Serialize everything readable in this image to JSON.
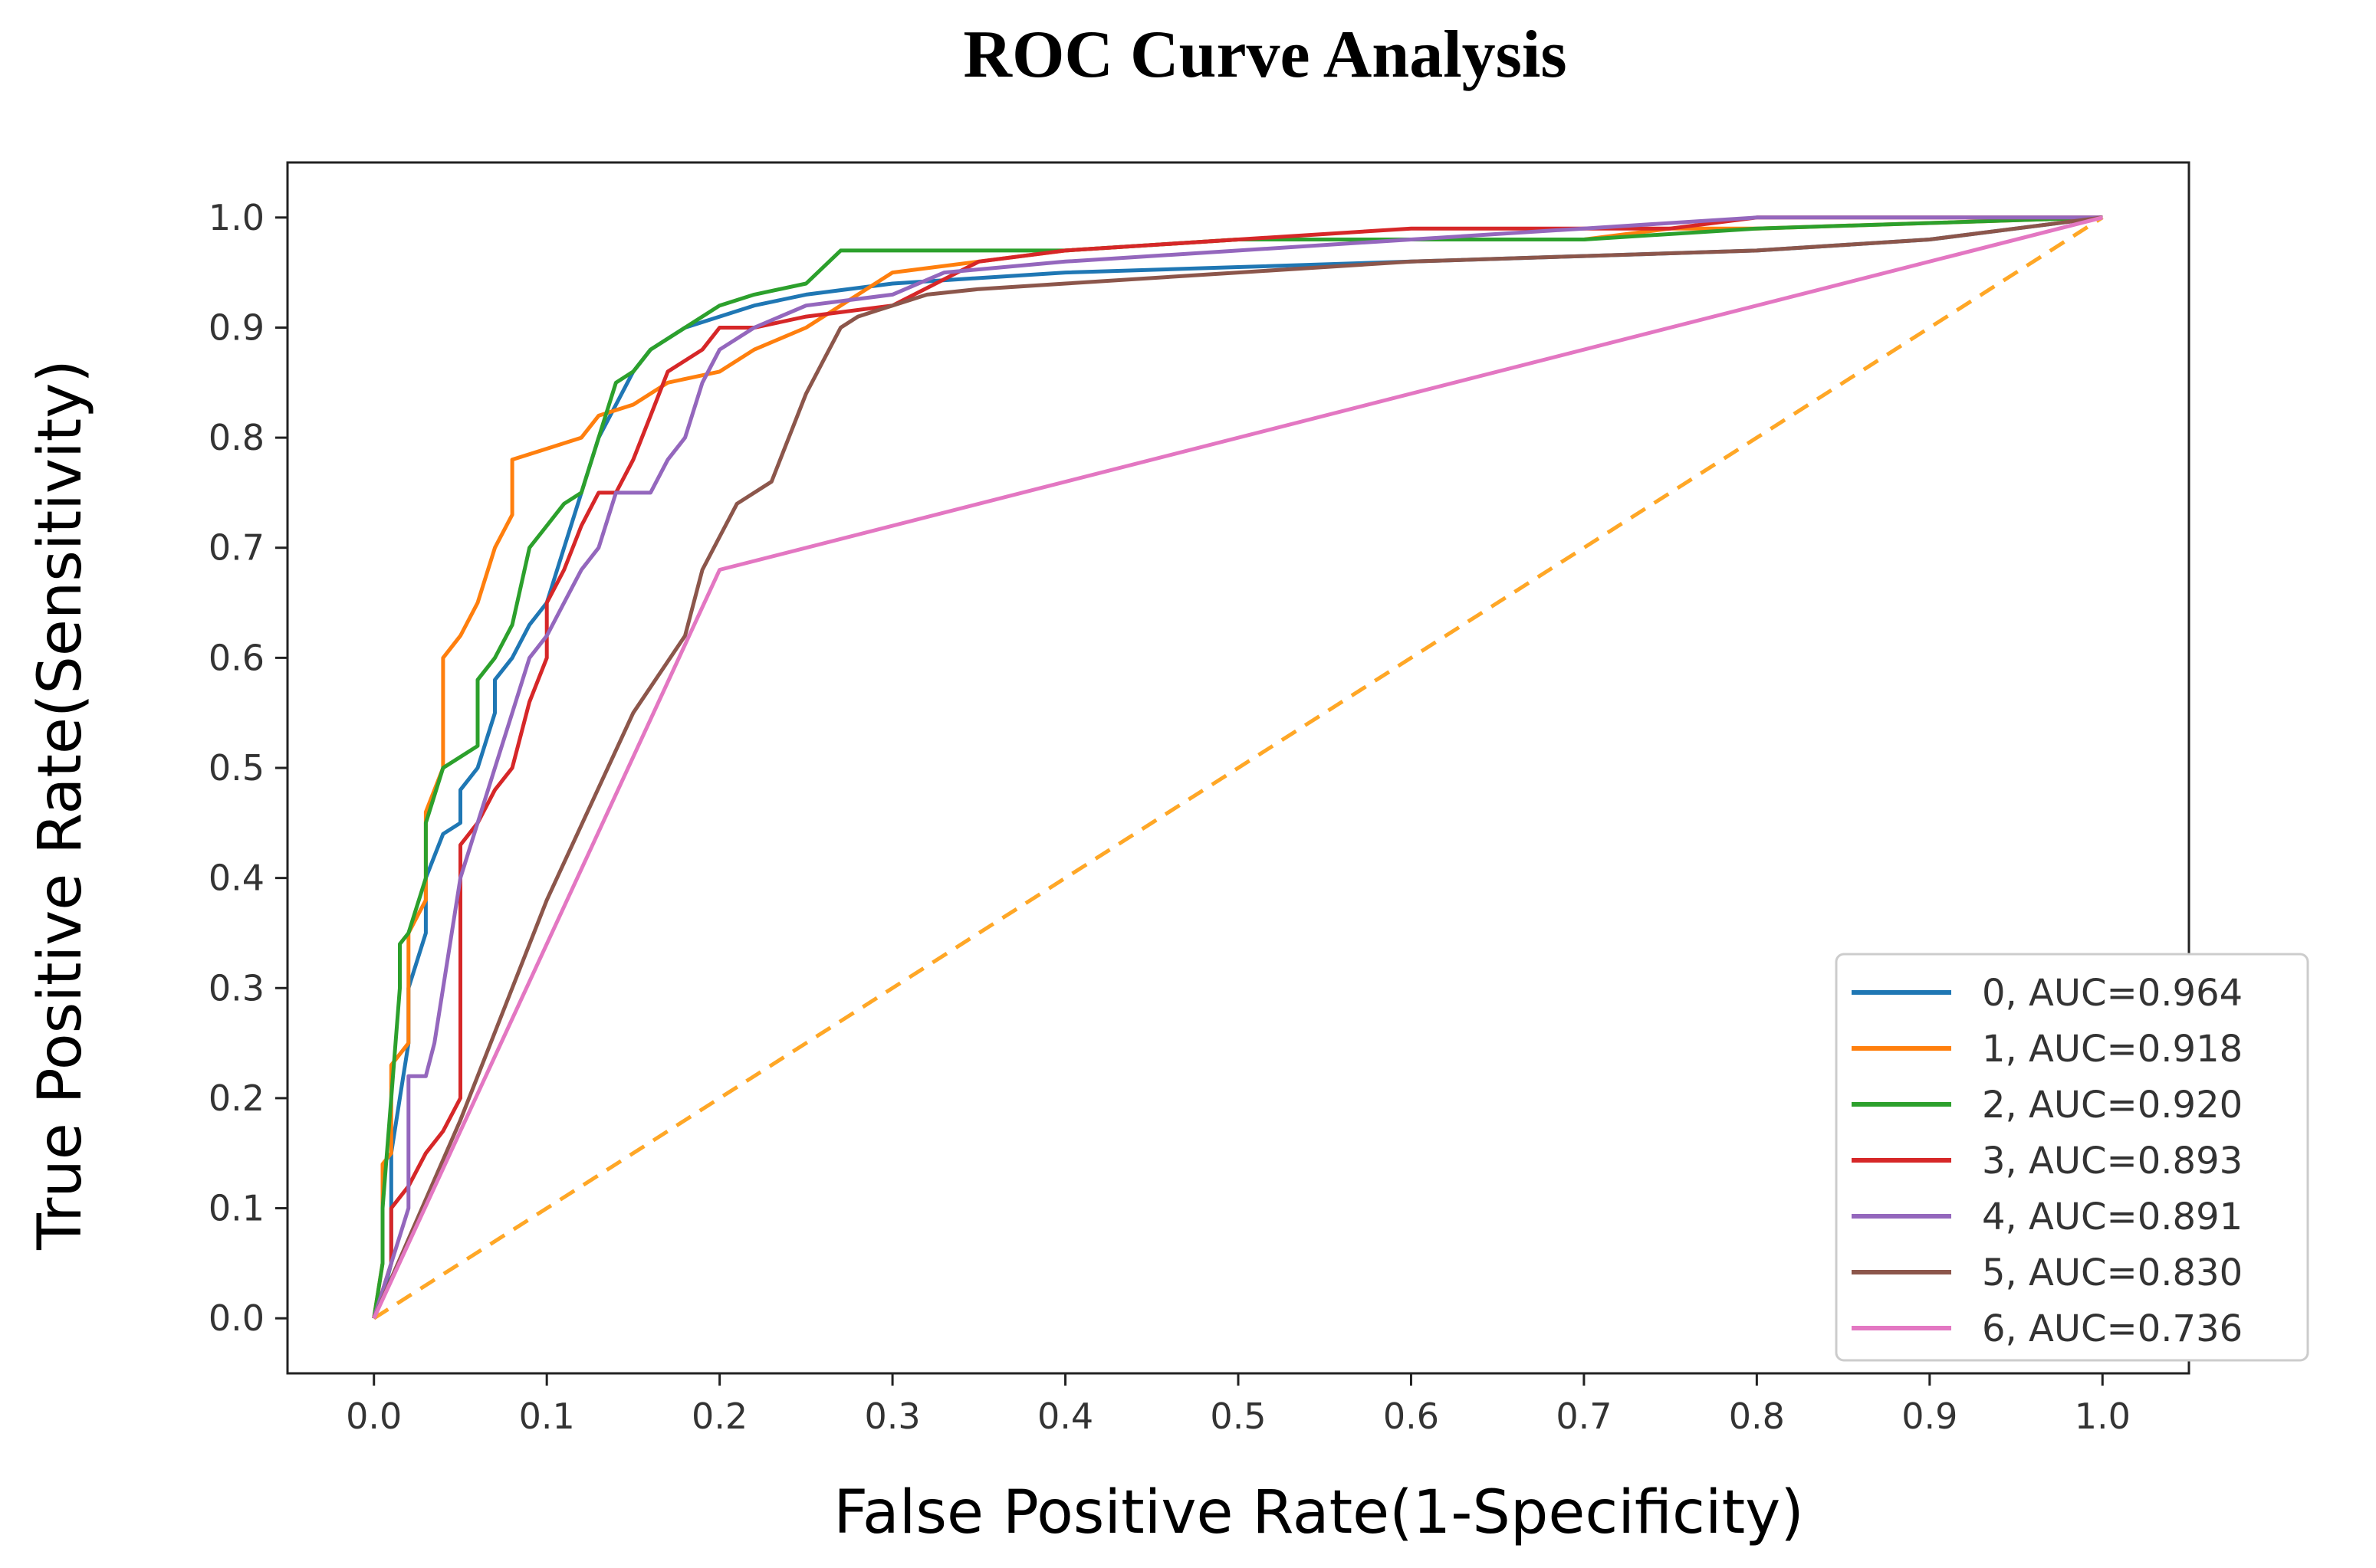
{
  "chart_data": {
    "type": "line",
    "title": "ROC Curve Analysis",
    "xlabel": "False Positive Rate(1-Specificity)",
    "ylabel": "True Positive Rate(Sensitivity)",
    "xlim": [
      -0.05,
      1.05
    ],
    "ylim": [
      -0.05,
      1.05
    ],
    "x_ticks": [
      "0.0",
      "0.1",
      "0.2",
      "0.3",
      "0.4",
      "0.5",
      "0.6",
      "0.7",
      "0.8",
      "0.9",
      "1.0"
    ],
    "y_ticks": [
      "0.0",
      "0.1",
      "0.2",
      "0.3",
      "0.4",
      "0.5",
      "0.6",
      "0.7",
      "0.8",
      "0.9",
      "1.0"
    ],
    "grid": false,
    "legend_position": "lower-right",
    "reference_line": {
      "x": [
        0,
        1
      ],
      "y": [
        0,
        1
      ],
      "color": "#ffa726",
      "style": "dashed"
    },
    "series": [
      {
        "name": "0, AUC=0.964",
        "color": "#1f77b4",
        "x": [
          0,
          0.005,
          0.01,
          0.01,
          0.015,
          0.02,
          0.02,
          0.03,
          0.03,
          0.04,
          0.05,
          0.05,
          0.06,
          0.07,
          0.07,
          0.08,
          0.09,
          0.1,
          0.11,
          0.12,
          0.13,
          0.14,
          0.15,
          0.16,
          0.17,
          0.18,
          0.2,
          0.22,
          0.25,
          0.3,
          0.4,
          0.5,
          0.6,
          0.7,
          0.8,
          0.9,
          0.95,
          1.0
        ],
        "y": [
          0,
          0.02,
          0.05,
          0.15,
          0.2,
          0.25,
          0.3,
          0.35,
          0.4,
          0.44,
          0.45,
          0.48,
          0.5,
          0.55,
          0.58,
          0.6,
          0.63,
          0.65,
          0.7,
          0.75,
          0.8,
          0.83,
          0.86,
          0.88,
          0.89,
          0.9,
          0.91,
          0.92,
          0.93,
          0.94,
          0.95,
          0.955,
          0.96,
          0.965,
          0.97,
          0.98,
          0.99,
          1.0
        ]
      },
      {
        "name": "1, AUC=0.918",
        "color": "#ff7f0e",
        "x": [
          0,
          0.005,
          0.005,
          0.01,
          0.01,
          0.02,
          0.02,
          0.03,
          0.03,
          0.04,
          0.04,
          0.05,
          0.06,
          0.07,
          0.08,
          0.08,
          0.1,
          0.12,
          0.13,
          0.15,
          0.17,
          0.2,
          0.22,
          0.25,
          0.3,
          0.4,
          0.5,
          0.6,
          0.7,
          0.75,
          0.8,
          0.9,
          1.0
        ],
        "y": [
          0,
          0.05,
          0.14,
          0.15,
          0.23,
          0.25,
          0.35,
          0.38,
          0.46,
          0.5,
          0.6,
          0.62,
          0.65,
          0.7,
          0.73,
          0.78,
          0.79,
          0.8,
          0.82,
          0.83,
          0.85,
          0.86,
          0.88,
          0.9,
          0.95,
          0.97,
          0.98,
          0.98,
          0.98,
          0.99,
          0.99,
          0.995,
          1.0
        ]
      },
      {
        "name": "2, AUC=0.920",
        "color": "#2ca02c",
        "x": [
          0,
          0.005,
          0.005,
          0.01,
          0.015,
          0.015,
          0.02,
          0.03,
          0.03,
          0.04,
          0.05,
          0.06,
          0.06,
          0.07,
          0.08,
          0.09,
          0.1,
          0.11,
          0.12,
          0.13,
          0.14,
          0.15,
          0.16,
          0.18,
          0.2,
          0.22,
          0.25,
          0.27,
          0.3,
          0.4,
          0.5,
          0.6,
          0.7,
          0.8,
          0.9,
          1.0
        ],
        "y": [
          0,
          0.05,
          0.1,
          0.2,
          0.3,
          0.34,
          0.35,
          0.4,
          0.45,
          0.5,
          0.51,
          0.52,
          0.58,
          0.6,
          0.63,
          0.7,
          0.72,
          0.74,
          0.75,
          0.8,
          0.85,
          0.86,
          0.88,
          0.9,
          0.92,
          0.93,
          0.94,
          0.97,
          0.97,
          0.97,
          0.98,
          0.98,
          0.98,
          0.99,
          0.995,
          1.0
        ]
      },
      {
        "name": "3, AUC=0.893",
        "color": "#d62728",
        "x": [
          0,
          0.01,
          0.01,
          0.02,
          0.03,
          0.04,
          0.05,
          0.05,
          0.06,
          0.07,
          0.08,
          0.09,
          0.1,
          0.1,
          0.11,
          0.12,
          0.13,
          0.14,
          0.15,
          0.16,
          0.17,
          0.19,
          0.2,
          0.22,
          0.25,
          0.3,
          0.35,
          0.4,
          0.5,
          0.6,
          0.7,
          0.75,
          0.8,
          0.9,
          1.0
        ],
        "y": [
          0,
          0.05,
          0.1,
          0.12,
          0.15,
          0.17,
          0.2,
          0.43,
          0.45,
          0.48,
          0.5,
          0.56,
          0.6,
          0.65,
          0.68,
          0.72,
          0.75,
          0.75,
          0.78,
          0.82,
          0.86,
          0.88,
          0.9,
          0.9,
          0.91,
          0.92,
          0.96,
          0.97,
          0.98,
          0.99,
          0.99,
          0.99,
          1.0,
          1.0,
          1.0
        ]
      },
      {
        "name": "4, AUC=0.891",
        "color": "#9467bd",
        "x": [
          0,
          0.01,
          0.02,
          0.02,
          0.03,
          0.035,
          0.04,
          0.05,
          0.06,
          0.07,
          0.08,
          0.09,
          0.1,
          0.11,
          0.12,
          0.13,
          0.14,
          0.16,
          0.17,
          0.18,
          0.19,
          0.2,
          0.22,
          0.25,
          0.3,
          0.33,
          0.4,
          0.5,
          0.6,
          0.7,
          0.8,
          0.9,
          1.0
        ],
        "y": [
          0,
          0.05,
          0.1,
          0.22,
          0.22,
          0.25,
          0.3,
          0.4,
          0.45,
          0.5,
          0.55,
          0.6,
          0.62,
          0.65,
          0.68,
          0.7,
          0.75,
          0.75,
          0.78,
          0.8,
          0.85,
          0.88,
          0.9,
          0.92,
          0.93,
          0.95,
          0.96,
          0.97,
          0.98,
          0.99,
          1.0,
          1.0,
          1.0
        ]
      },
      {
        "name": "5, AUC=0.830",
        "color": "#8c564b",
        "x": [
          0,
          0.05,
          0.1,
          0.15,
          0.18,
          0.19,
          0.2,
          0.21,
          0.23,
          0.24,
          0.25,
          0.26,
          0.27,
          0.28,
          0.3,
          0.32,
          0.35,
          0.4,
          0.5,
          0.6,
          0.7,
          0.8,
          0.9,
          1.0
        ],
        "y": [
          0,
          0.18,
          0.38,
          0.55,
          0.62,
          0.68,
          0.71,
          0.74,
          0.76,
          0.8,
          0.84,
          0.87,
          0.9,
          0.91,
          0.92,
          0.93,
          0.935,
          0.94,
          0.95,
          0.96,
          0.965,
          0.97,
          0.98,
          1.0
        ]
      },
      {
        "name": "6, AUC=0.736",
        "color": "#e377c2",
        "x": [
          0,
          0.2,
          1.0
        ],
        "y": [
          0,
          0.68,
          1.0
        ]
      }
    ]
  }
}
